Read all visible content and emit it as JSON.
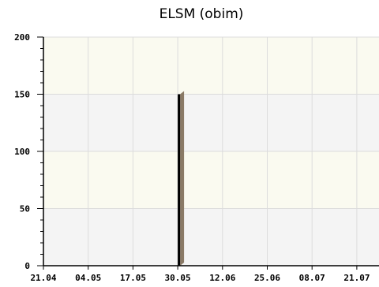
{
  "chart_data": {
    "type": "bar",
    "title": "ELSM (obim)",
    "xlabel": "",
    "ylabel": "",
    "ylim": [
      0,
      200
    ],
    "y_ticks": [
      "0",
      "50",
      "100",
      "150",
      "200"
    ],
    "x_tick_labels": [
      "21.04",
      "04.05",
      "17.05",
      "30.05",
      "12.06",
      "25.06",
      "08.07",
      "21.07"
    ],
    "bars": [
      {
        "x": "30.05",
        "value": 150
      }
    ],
    "grid": true,
    "colors": {
      "band_light": "#fafaf0",
      "band_gray": "#f4f4f4",
      "grid_line": "#dcdcdc",
      "bar_front": "#000000",
      "bar_side": "#8a7a66",
      "axis": "#000000"
    }
  }
}
